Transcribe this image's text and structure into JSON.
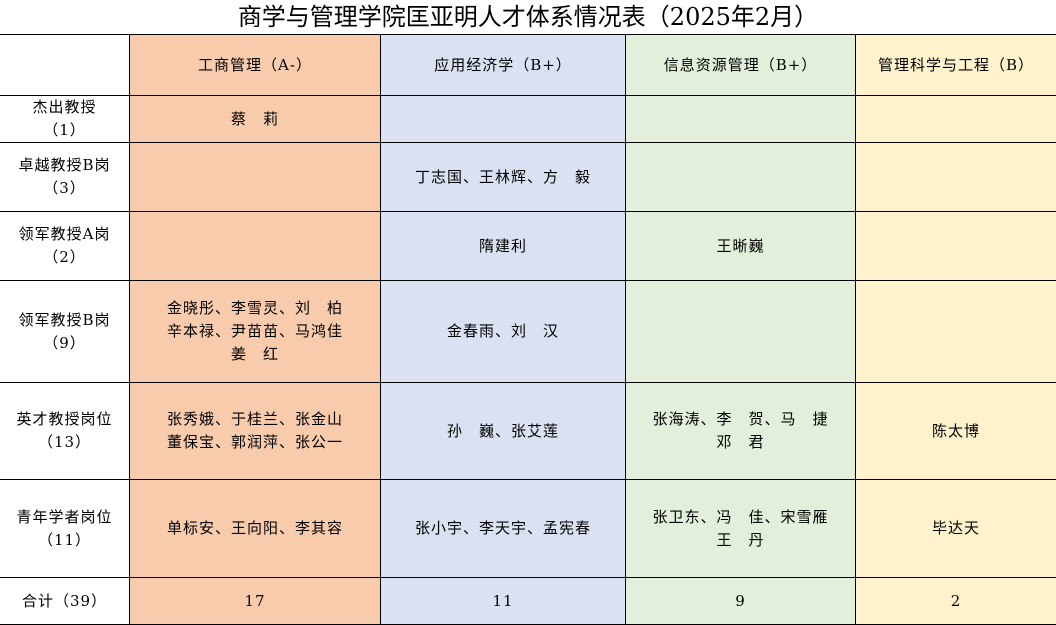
{
  "title": "商学与管理学院匡亚明人才体系情况表（2025年2月）",
  "colors": {
    "col1": "#f8cbad",
    "col2": "#d9e1f2",
    "col3": "#e2efda",
    "col4": "#fff2cc"
  },
  "headers": [
    "",
    "工商管理（A-）",
    "应用经济学（B+）",
    "信息资源管理（B+）",
    "管理科学与工程（B）"
  ],
  "rows": [
    {
      "label": "杰出教授\n（1）",
      "cells": [
        "蔡　莉",
        "",
        "",
        ""
      ]
    },
    {
      "label": "卓越教授B岗\n（3）",
      "cells": [
        "",
        "丁志国、王林辉、方　毅",
        "",
        ""
      ]
    },
    {
      "label": "领军教授A岗\n（2）",
      "cells": [
        "",
        "隋建利",
        "王晰巍",
        ""
      ]
    },
    {
      "label": "领军教授B岗\n（9）",
      "cells": [
        "金晓彤、李雪灵、刘　柏\n辛本禄、尹苗苗、马鸿佳\n姜　红",
        "金春雨、刘　汉",
        "",
        ""
      ]
    },
    {
      "label": "英才教授岗位\n（13）",
      "cells": [
        "张秀娥、于桂兰、张金山\n董保宝、郭润萍、张公一",
        "孙　巍、张艾莲",
        "张海涛、李　贺、马　捷\n邓　君",
        "陈太博"
      ]
    },
    {
      "label": "青年学者岗位\n（11）",
      "cells": [
        "单标安、王向阳、李其容",
        "张小宇、李天宇、孟宪春",
        "张卫东、冯　佳、宋雪雁\n王　丹",
        "毕达天"
      ]
    },
    {
      "label": "合计（39）",
      "cells": [
        "17",
        "11",
        "9",
        "2"
      ]
    }
  ]
}
